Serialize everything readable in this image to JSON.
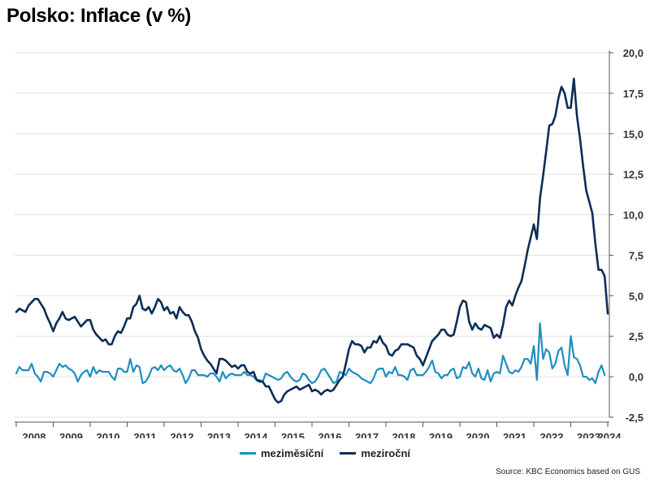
{
  "title": "Polsko: Inflace (v %)",
  "source": "Source: KBC Economics based on GUS",
  "colors": {
    "mom": "#1f8ec0",
    "yoy": "#0d2d57",
    "grid": "#e2e2e2",
    "axis": "#555555"
  },
  "chart_data": {
    "type": "line",
    "title": "Polsko: Inflace (v %)",
    "xlabel": "",
    "ylabel": "",
    "x_start": "2008-01",
    "x_end": "2023-12",
    "x_ticks": [
      "2008",
      "2009",
      "2010",
      "2011",
      "2012",
      "2013",
      "2014",
      "2015",
      "2016",
      "2017",
      "2018",
      "2019",
      "2020",
      "2021",
      "2022",
      "2023",
      "2024"
    ],
    "y_ticks": [
      "-2,5",
      "0,0",
      "2,5",
      "5,0",
      "7,5",
      "10,0",
      "12,5",
      "15,0",
      "17,5",
      "20,0"
    ],
    "ylim": [
      -2.5,
      20
    ],
    "y_axis_position": "right",
    "grid": "horizontal",
    "legend_placement": "bottom-center",
    "series": [
      {
        "name": "meziměsíční",
        "color": "#1f8ec0",
        "values": [
          0.2,
          0.6,
          0.4,
          0.4,
          0.4,
          0.8,
          0.2,
          0.0,
          -0.3,
          0.3,
          0.3,
          0.2,
          0.0,
          0.4,
          0.8,
          0.6,
          0.7,
          0.5,
          0.4,
          0.2,
          -0.3,
          0.1,
          0.3,
          0.4,
          0.0,
          0.6,
          0.2,
          0.4,
          0.3,
          0.3,
          0.3,
          0.0,
          -0.2,
          0.5,
          0.5,
          0.3,
          0.3,
          1.1,
          0.3,
          0.7,
          0.6,
          -0.4,
          -0.3,
          0.0,
          0.5,
          0.6,
          0.4,
          0.7,
          0.4,
          0.6,
          0.7,
          0.4,
          0.3,
          0.5,
          0.1,
          -0.4,
          -0.1,
          0.4,
          0.4,
          0.1,
          0.1,
          0.1,
          0.0,
          0.2,
          0.2,
          0.0,
          -0.3,
          0.3,
          -0.1,
          0.1,
          0.2,
          0.1,
          0.1,
          0.1,
          0.3,
          0.1,
          0.1,
          0.0,
          -0.2,
          -0.2,
          -0.3,
          0.2,
          0.1,
          0.0,
          -0.1,
          -0.2,
          -0.1,
          0.2,
          0.3,
          0.0,
          -0.2,
          -0.3,
          -0.2,
          0.2,
          0.1,
          -0.2,
          -0.4,
          -0.3,
          0.0,
          0.4,
          0.5,
          0.2,
          -0.1,
          -0.4,
          -0.3,
          0.3,
          0.2,
          0.1,
          0.5,
          0.3,
          0.2,
          0.1,
          -0.1,
          -0.2,
          -0.3,
          -0.4,
          -0.1,
          0.4,
          0.5,
          0.5,
          0.0,
          0.3,
          0.2,
          0.6,
          0.1,
          0.1,
          0.0,
          -0.2,
          0.4,
          0.5,
          0.1,
          0.1,
          0.1,
          0.3,
          0.6,
          1.0,
          0.3,
          0.2,
          -0.1,
          0.1,
          0.1,
          0.4,
          0.5,
          -0.1,
          0.0,
          0.6,
          0.5,
          0.9,
          0.2,
          0.0,
          0.5,
          -0.1,
          -0.2,
          0.4,
          -0.3,
          0.2,
          0.3,
          0.2,
          1.3,
          0.8,
          0.3,
          0.2,
          0.4,
          0.3,
          0.6,
          1.1,
          1.1,
          0.8,
          1.9,
          -0.2,
          3.3,
          1.1,
          1.7,
          1.5,
          0.5,
          0.8,
          1.6,
          1.8,
          0.7,
          0.1,
          2.5,
          1.2,
          1.1,
          0.7,
          0.0,
          0.0,
          -0.2,
          -0.1,
          -0.4,
          0.3,
          0.7,
          0.1
        ]
      },
      {
        "name": "meziroční",
        "color": "#0d2d57",
        "values": [
          4.0,
          4.2,
          4.1,
          4.0,
          4.4,
          4.6,
          4.8,
          4.8,
          4.5,
          4.2,
          3.7,
          3.3,
          2.8,
          3.3,
          3.6,
          4.0,
          3.6,
          3.5,
          3.6,
          3.7,
          3.4,
          3.1,
          3.3,
          3.5,
          3.5,
          2.9,
          2.6,
          2.4,
          2.2,
          2.3,
          2.0,
          2.0,
          2.5,
          2.8,
          2.7,
          3.1,
          3.6,
          3.6,
          4.3,
          4.5,
          5.0,
          4.2,
          4.1,
          4.3,
          3.9,
          4.3,
          4.8,
          4.6,
          4.1,
          4.3,
          3.9,
          4.0,
          3.6,
          4.3,
          4.0,
          3.8,
          3.8,
          3.4,
          2.8,
          2.4,
          1.7,
          1.3,
          1.0,
          0.8,
          0.5,
          0.2,
          1.1,
          1.1,
          1.0,
          0.8,
          0.6,
          0.7,
          0.5,
          0.7,
          0.7,
          0.3,
          0.2,
          0.3,
          -0.2,
          -0.3,
          -0.3,
          -0.6,
          -0.6,
          -1.0,
          -1.4,
          -1.6,
          -1.5,
          -1.1,
          -0.9,
          -0.8,
          -0.7,
          -0.6,
          -0.8,
          -0.7,
          -0.6,
          -0.5,
          -0.9,
          -0.8,
          -0.9,
          -1.1,
          -0.9,
          -0.8,
          -0.9,
          -0.8,
          -0.5,
          -0.2,
          0.0,
          0.8,
          1.7,
          2.2,
          2.0,
          2.0,
          1.9,
          1.5,
          1.8,
          1.8,
          2.2,
          2.1,
          2.5,
          2.1,
          1.9,
          1.4,
          1.3,
          1.6,
          1.7,
          2.0,
          2.0,
          2.0,
          1.9,
          1.8,
          1.3,
          1.1,
          0.7,
          1.2,
          1.7,
          2.2,
          2.4,
          2.6,
          2.9,
          2.9,
          2.6,
          2.5,
          2.6,
          3.4,
          4.3,
          4.7,
          4.6,
          3.4,
          2.9,
          3.3,
          3.0,
          2.9,
          3.2,
          3.1,
          3.0,
          2.4,
          2.6,
          2.4,
          3.2,
          4.3,
          4.7,
          4.4,
          5.0,
          5.5,
          5.9,
          6.8,
          7.8,
          8.6,
          9.4,
          8.5,
          11.0,
          12.4,
          13.9,
          15.5,
          15.6,
          16.1,
          17.2,
          17.9,
          17.5,
          16.6,
          16.6,
          18.4,
          16.1,
          14.7,
          13.0,
          11.5,
          10.8,
          10.1,
          8.2,
          6.6,
          6.6,
          6.2,
          3.9
        ]
      }
    ]
  }
}
